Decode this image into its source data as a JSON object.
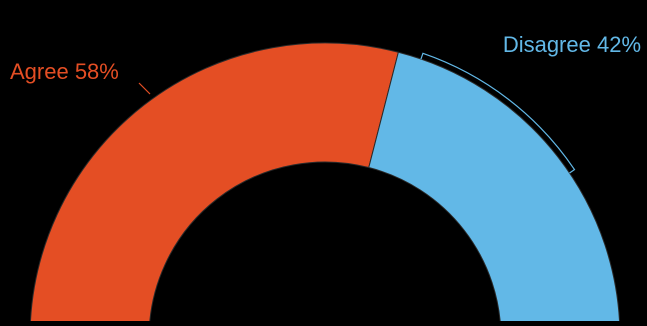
{
  "chart_data": {
    "type": "pie",
    "variant": "semi-donut",
    "background": "#000000",
    "slices": [
      {
        "label": "Agree",
        "value": 58,
        "display": "Agree 58%",
        "color": "#E44E24"
      },
      {
        "label": "Disagree",
        "value": 42,
        "display": "Disagree 42%",
        "color": "#62B8E7"
      }
    ]
  }
}
